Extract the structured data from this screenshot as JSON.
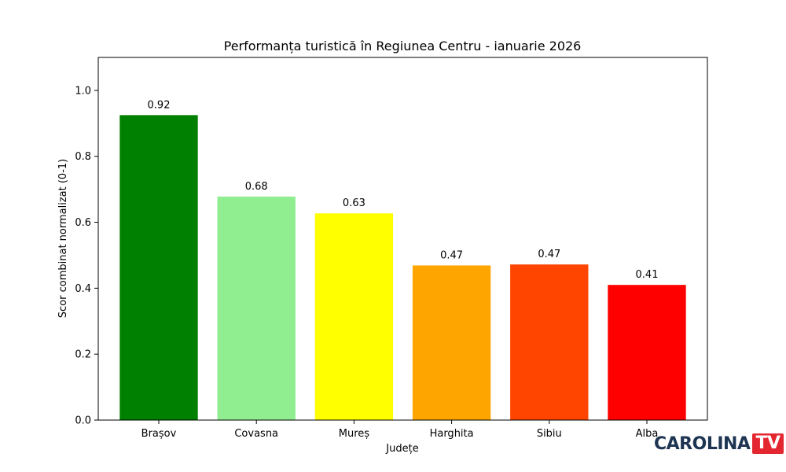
{
  "chart_data": {
    "type": "bar",
    "title": "Performanța turistică în Regiunea Centru - ianuarie 2026",
    "xlabel": "Județe",
    "ylabel": "Scor combinat normalizat (0-1)",
    "categories": [
      "Brașov",
      "Covasna",
      "Mureș",
      "Harghita",
      "Sibiu",
      "Alba"
    ],
    "values": [
      0.925,
      0.678,
      0.627,
      0.469,
      0.472,
      0.41
    ],
    "value_labels": [
      "0.92",
      "0.68",
      "0.63",
      "0.47",
      "0.47",
      "0.41"
    ],
    "colors": [
      "#008000",
      "#90ee90",
      "#ffff00",
      "#ffa500",
      "#ff4500",
      "#ff0000"
    ],
    "ylim": [
      0,
      1.1
    ],
    "yticks": [
      0.0,
      0.2,
      0.4,
      0.6,
      0.8,
      1.0
    ],
    "ytick_labels": [
      "0.0",
      "0.2",
      "0.4",
      "0.6",
      "0.8",
      "1.0"
    ],
    "grid": false,
    "legend": "none"
  },
  "watermark": {
    "logo_main": "CAROLINA",
    "logo_tv": "TV",
    "colors": {
      "main": "#1d3552",
      "badge": "#e3262f"
    }
  }
}
